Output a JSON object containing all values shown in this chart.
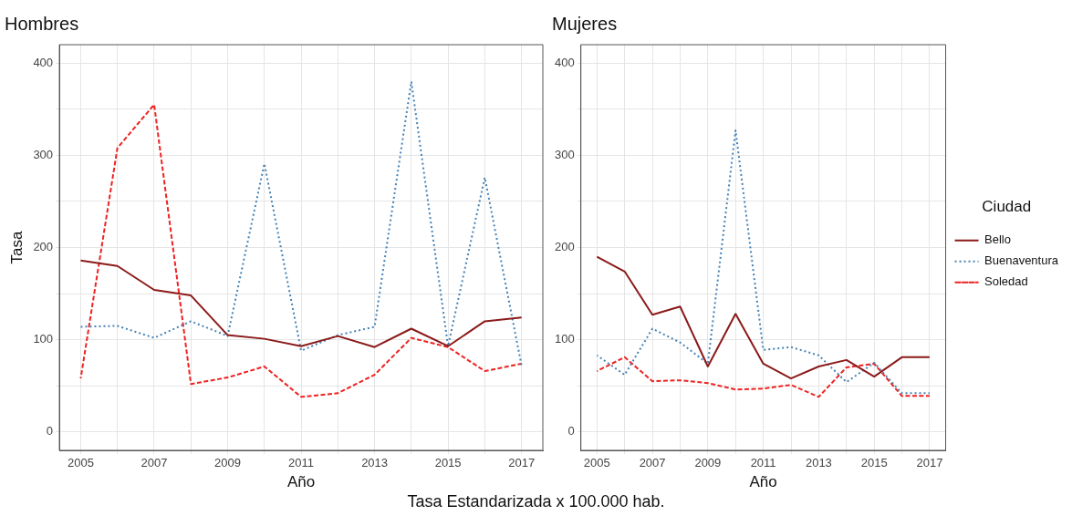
{
  "chart_data": [
    {
      "type": "line",
      "title": "Hombres",
      "xlabel": "Año",
      "ylabel": "Tasa",
      "x": [
        2005,
        2006,
        2007,
        2008,
        2009,
        2010,
        2011,
        2012,
        2013,
        2014,
        2015,
        2016,
        2017
      ],
      "xlim": [
        2004.42,
        2017.58
      ],
      "xticks": [
        2005,
        {
          "value": 2006,
          "label": null
        },
        2007,
        {
          "value": 2008,
          "label": null
        },
        2009,
        {
          "value": 2010,
          "label": null
        },
        2011,
        {
          "value": 2012,
          "label": null
        },
        2013,
        {
          "value": 2014,
          "label": null
        },
        2015,
        {
          "value": 2016,
          "label": null
        },
        2017
      ],
      "ylim": [
        -20,
        420
      ],
      "yticks": [
        0,
        {
          "value": 50,
          "label": null
        },
        100,
        {
          "value": 150,
          "label": null
        },
        200,
        {
          "value": 250,
          "label": null
        },
        300,
        {
          "value": 350,
          "label": null
        },
        400
      ],
      "grid": true,
      "legend": false,
      "marker": "none",
      "annotations": [
        "Tasa Estandarizada x 100.000 hab."
      ],
      "series": [
        {
          "color": "#8b1a1a",
          "line_style": "solid",
          "values": [
            186,
            180,
            154,
            148,
            105,
            101,
            93,
            104,
            92,
            112,
            93,
            120,
            124
          ]
        },
        {
          "color": "#4682b4",
          "line_style": "dotted",
          "values": [
            114,
            115,
            102,
            120,
            104,
            291,
            88,
            105,
            114,
            380,
            93,
            276,
            72
          ]
        },
        {
          "color": "#ee2222",
          "line_style": "dashed",
          "values": [
            58,
            308,
            355,
            52,
            59,
            71,
            38,
            42,
            62,
            102,
            92,
            66,
            74
          ]
        }
      ]
    },
    {
      "type": "line",
      "title": "Mujeres",
      "xlabel": "Año",
      "legend_title": "Ciudad",
      "x": [
        2005,
        2006,
        2007,
        2008,
        2009,
        2010,
        2011,
        2012,
        2013,
        2014,
        2015,
        2016,
        2017
      ],
      "xlim": [
        2004.42,
        2017.58
      ],
      "xticks": [
        2005,
        {
          "value": 2006,
          "label": null
        },
        2007,
        {
          "value": 2008,
          "label": null
        },
        2009,
        {
          "value": 2010,
          "label": null
        },
        2011,
        {
          "value": 2012,
          "label": null
        },
        2013,
        {
          "value": 2014,
          "label": null
        },
        2015,
        {
          "value": 2016,
          "label": null
        },
        2017
      ],
      "ylim": [
        -20,
        420
      ],
      "yticks": [
        0,
        {
          "value": 50,
          "label": null
        },
        100,
        {
          "value": 150,
          "label": null
        },
        200,
        {
          "value": 250,
          "label": null
        },
        300,
        {
          "value": 350,
          "label": null
        },
        400
      ],
      "grid": true,
      "legend": "right",
      "marker": "none",
      "series": [
        {
          "name": "Bello",
          "color": "#8b1a1a",
          "line_style": "solid",
          "values": [
            190,
            174,
            127,
            136,
            71,
            128,
            74,
            58,
            71,
            78,
            60,
            81,
            81
          ]
        },
        {
          "name": "Buenaventura",
          "color": "#4682b4",
          "line_style": "dotted",
          "values": [
            83,
            62,
            112,
            97,
            74,
            327,
            89,
            92,
            83,
            54,
            75,
            42,
            42
          ]
        },
        {
          "name": "Soledad",
          "color": "#ee2222",
          "line_style": "dashed",
          "values": [
            66,
            81,
            55,
            56,
            53,
            46,
            47,
            51,
            38,
            70,
            74,
            39,
            39
          ]
        }
      ]
    }
  ]
}
